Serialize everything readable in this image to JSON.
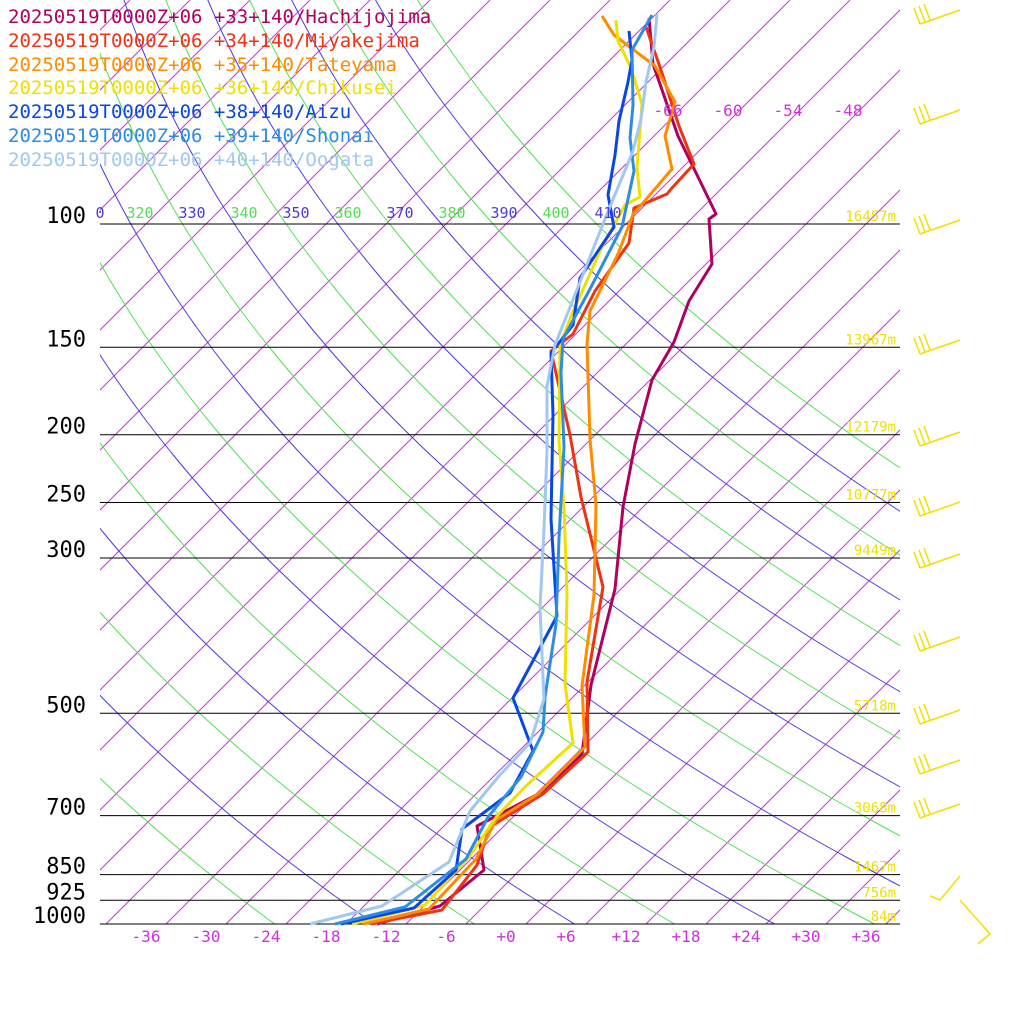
{
  "legend": [
    {
      "label": "20250519T0000Z+06 +33+140/Hachijojima",
      "color": "#b0005e"
    },
    {
      "label": "20250519T0000Z+06 +34+140/Miyakejima",
      "color": "#f03214"
    },
    {
      "label": "20250519T0000Z+06 +35+140/Tateyama",
      "color": "#ff8c00"
    },
    {
      "label": "20250519T0000Z+06 +36+140/Chikusei",
      "color": "#f0e000"
    },
    {
      "label": "20250519T0000Z+06 +38+140/Aizu",
      "color": "#0a46e6"
    },
    {
      "label": "20250519T0000Z+06 +39+140/Shonai",
      "color": "#2c8ce6"
    },
    {
      "label": "20250519T0000Z+06 +40+140/Oogata",
      "color": "#a0c8f0"
    }
  ],
  "chart_data": {
    "type": "line",
    "pressure_levels": [
      {
        "p": 100,
        "label": "100",
        "height": "16457m"
      },
      {
        "p": 150,
        "label": "150",
        "height": "13967m"
      },
      {
        "p": 200,
        "label": "200",
        "height": "12179m"
      },
      {
        "p": 250,
        "label": "250",
        "height": "10777m"
      },
      {
        "p": 300,
        "label": "300",
        "height": "9449m"
      },
      {
        "p": 500,
        "label": "500",
        "height": "5718m"
      },
      {
        "p": 700,
        "label": "700",
        "height": "3068m"
      },
      {
        "p": 850,
        "label": "850",
        "height": "1467m"
      },
      {
        "p": 925,
        "label": "925",
        "height": "756m"
      },
      {
        "p": 1000,
        "label": "1000",
        "height": "84m"
      }
    ],
    "x_ticks": [
      "-36",
      "-30",
      "-24",
      "-18",
      "-12",
      "-6",
      "+0",
      "+6",
      "+12",
      "+18",
      "+24",
      "+30",
      "+36"
    ],
    "isotherm_top_labels": [
      "-66",
      "-60",
      "-54",
      "-48"
    ],
    "theta_labels": [
      "0",
      "320",
      "330",
      "340",
      "350",
      "360",
      "370",
      "380",
      "390",
      "400",
      "410"
    ],
    "series": [
      {
        "name": "20250519T0000Z+06 +33+140/Hachijojima",
        "color": "#b0005e",
        "points": [
          [
            -12.9,
            0
          ],
          [
            -6.6,
            18
          ],
          [
            -2.2,
            54
          ],
          [
            -2.9,
            98
          ],
          [
            3.8,
            133
          ],
          [
            7.6,
            170
          ],
          [
            8.5,
            239
          ],
          [
            10.9,
            335
          ],
          [
            11.7,
            417
          ],
          [
            12.9,
            480
          ],
          [
            14.6,
            544
          ],
          [
            16.8,
            582
          ],
          [
            18.3,
            623
          ],
          [
            20.6,
            660
          ],
          [
            20.3,
            705
          ],
          [
            21.0,
            710
          ],
          [
            19.4,
            743
          ],
          [
            17.2,
            788
          ],
          [
            14.7,
            860
          ],
          [
            14.3,
            906
          ]
        ]
      },
      {
        "name": "20250519T0000Z+06 +34+140/Miyakejima",
        "color": "#f03214",
        "points": [
          [
            -13.5,
            0
          ],
          [
            -6.4,
            14
          ],
          [
            -2.9,
            59
          ],
          [
            -1.6,
            97
          ],
          [
            3.7,
            130
          ],
          [
            8.2,
            172
          ],
          [
            8.1,
            242
          ],
          [
            9.7,
            337
          ],
          [
            7.5,
            427
          ],
          [
            6.4,
            489
          ],
          [
            4.5,
            573
          ],
          [
            6.7,
            590
          ],
          [
            8.9,
            633
          ],
          [
            12.3,
            681
          ],
          [
            12.8,
            716
          ],
          [
            16.1,
            730
          ],
          [
            16.5,
            735
          ],
          [
            18.8,
            760
          ],
          [
            17.3,
            798
          ],
          [
            15.5,
            854
          ],
          [
            14.0,
            897
          ]
        ]
      },
      {
        "name": "20250519T0000Z+06 +35+140/Tateyama",
        "color": "#ff8c00",
        "points": [
          [
            -14.3,
            0
          ],
          [
            -7.7,
            15
          ],
          [
            -3.0,
            65
          ],
          [
            -1.0,
            104
          ],
          [
            3.2,
            130
          ],
          [
            7.9,
            177
          ],
          [
            7.6,
            238
          ],
          [
            8.8,
            329
          ],
          [
            9.0,
            419
          ],
          [
            8.4,
            485
          ],
          [
            8.1,
            580
          ],
          [
            8.4,
            613
          ],
          [
            11.2,
            670
          ],
          [
            12.8,
            712
          ],
          [
            13.0,
            713
          ],
          [
            16.6,
            755
          ],
          [
            15.9,
            788
          ],
          [
            16.9,
            822
          ],
          [
            14.9,
            858
          ],
          [
            10.8,
            889
          ],
          [
            9.6,
            908
          ]
        ]
      },
      {
        "name": "20250519T0000Z+06 +36+140/Chikusei",
        "color": "#f0e000",
        "points": [
          [
            -15.4,
            0
          ],
          [
            -8.1,
            19
          ],
          [
            -3.7,
            67
          ],
          [
            -0.9,
            108
          ],
          [
            2.1,
            139
          ],
          [
            6.7,
            181
          ],
          [
            5.9,
            240
          ],
          [
            6.1,
            331
          ],
          [
            5.8,
            418
          ],
          [
            5.3,
            483
          ],
          [
            5.4,
            579
          ],
          [
            6.6,
            610
          ],
          [
            9.6,
            677
          ],
          [
            11.9,
            719
          ],
          [
            13.4,
            727
          ],
          [
            13.1,
            756
          ],
          [
            13.6,
            820
          ],
          [
            12.5,
            856
          ],
          [
            11.2,
            883
          ],
          [
            11.0,
            904
          ]
        ]
      },
      {
        "name": "20250519T0000Z+06 +38+140/Aizu",
        "color": "#0a46e6",
        "points": [
          [
            -16.5,
            0
          ],
          [
            -9.2,
            16
          ],
          [
            -5.0,
            54
          ],
          [
            -4.4,
            95
          ],
          [
            0.4,
            131
          ],
          [
            2.7,
            173
          ],
          [
            0.7,
            226
          ],
          [
            5.1,
            308
          ],
          [
            4.5,
            405
          ],
          [
            4.7,
            509
          ],
          [
            4.5,
            571
          ],
          [
            6.7,
            599
          ],
          [
            7.4,
            646
          ],
          [
            10.8,
            697
          ],
          [
            10.2,
            729
          ],
          [
            10.9,
            769
          ],
          [
            11.3,
            803
          ],
          [
            12.2,
            842
          ],
          [
            12.6,
            864
          ],
          [
            12.3,
            893
          ]
        ]
      },
      {
        "name": "20250519T0000Z+06 +39+140/Shonai",
        "color": "#2c8ce6",
        "points": [
          [
            -17.1,
            0
          ],
          [
            -10.1,
            17
          ],
          [
            -4.0,
            65
          ],
          [
            -1.8,
            107
          ],
          [
            1.5,
            147
          ],
          [
            3.7,
            192
          ],
          [
            3.9,
            227
          ],
          [
            5.0,
            300
          ],
          [
            5.3,
            386
          ],
          [
            5.8,
            477
          ],
          [
            5.5,
            551
          ],
          [
            5.7,
            585
          ],
          [
            8.4,
            635
          ],
          [
            11.6,
            697
          ],
          [
            12.8,
            753
          ],
          [
            12.4,
            786
          ],
          [
            12.7,
            819
          ],
          [
            12.6,
            874
          ],
          [
            14.6,
            909
          ]
        ]
      },
      {
        "name": "20250519T0000Z+06 +40+140/Oogata",
        "color": "#a0c8f0",
        "points": [
          [
            -19.6,
            0
          ],
          [
            -12.4,
            18
          ],
          [
            -5.7,
            62
          ],
          [
            -3.6,
            113
          ],
          [
            -0.7,
            148
          ],
          [
            2.4,
            181
          ],
          [
            3.8,
            225
          ],
          [
            3.4,
            316
          ],
          [
            3.8,
            395
          ],
          [
            4.1,
            473
          ],
          [
            4.1,
            538
          ],
          [
            4.9,
            579
          ],
          [
            7.2,
            637
          ],
          [
            10.1,
            710
          ],
          [
            12.7,
            773
          ],
          [
            13.5,
            805
          ],
          [
            14.0,
            842
          ],
          [
            14.8,
            877
          ],
          [
            15.1,
            910
          ]
        ]
      }
    ]
  }
}
